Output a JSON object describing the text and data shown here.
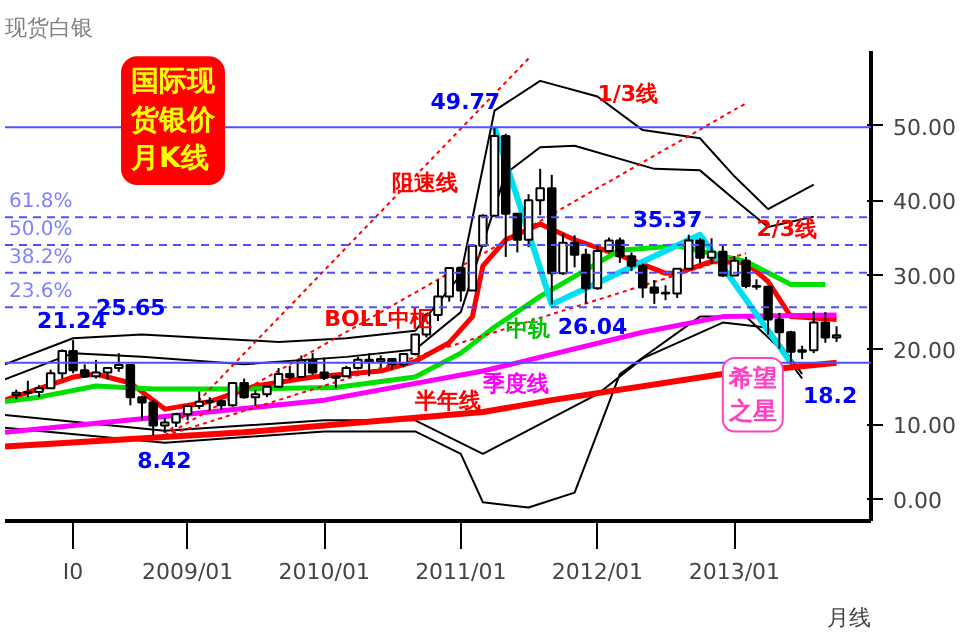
{
  "chart_data": {
    "type": "candlestick",
    "title": "现货白银",
    "subtitle": "国际现货银价月K线",
    "xlabel": "月线",
    "x": [
      "2007-10",
      "2007-11",
      "2007-12",
      "2008-01",
      "2008-02",
      "2008-03",
      "2008-04",
      "2008-05",
      "2008-06",
      "2008-07",
      "2008-08",
      "2008-09",
      "2008-10",
      "2008-11",
      "2008-12",
      "2009-01",
      "2009-02",
      "2009-03",
      "2009-04",
      "2009-05",
      "2009-06",
      "2009-07",
      "2009-08",
      "2009-09",
      "2009-10",
      "2009-11",
      "2009-12",
      "2010-01",
      "2010-02",
      "2010-03",
      "2010-04",
      "2010-05",
      "2010-06",
      "2010-07",
      "2010-08",
      "2010-09",
      "2010-10",
      "2010-11",
      "2010-12",
      "2011-01",
      "2011-02",
      "2011-03",
      "2011-04",
      "2011-05",
      "2011-06",
      "2011-07",
      "2011-08",
      "2011-09",
      "2011-10",
      "2011-11",
      "2011-12",
      "2012-01",
      "2012-02",
      "2012-03",
      "2012-04",
      "2012-05",
      "2012-06",
      "2012-07",
      "2012-08",
      "2012-09",
      "2012-10",
      "2012-11",
      "2012-12",
      "2013-01",
      "2013-02",
      "2013-03",
      "2013-04",
      "2013-05",
      "2013-06",
      "2013-07",
      "2013-08",
      "2013-09",
      "2013-10"
    ],
    "ohlc": [
      [
        13.9,
        14.6,
        13.3,
        14.2
      ],
      [
        14.2,
        15.8,
        13.6,
        14.3
      ],
      [
        14.3,
        15.2,
        13.6,
        14.8
      ],
      [
        14.8,
        17.3,
        14.8,
        16.8
      ],
      [
        16.8,
        20.0,
        16.1,
        19.8
      ],
      [
        19.8,
        21.24,
        16.8,
        17.2
      ],
      [
        17.2,
        18.0,
        16.2,
        16.4
      ],
      [
        16.4,
        18.6,
        16.1,
        16.9
      ],
      [
        16.9,
        17.6,
        16.0,
        17.5
      ],
      [
        17.5,
        19.5,
        17.0,
        17.9
      ],
      [
        17.9,
        18.0,
        12.5,
        13.6
      ],
      [
        13.6,
        13.8,
        10.5,
        12.9
      ],
      [
        12.9,
        13.2,
        8.42,
        9.8
      ],
      [
        9.8,
        10.8,
        8.8,
        10.2
      ],
      [
        10.2,
        11.5,
        9.6,
        11.3
      ],
      [
        11.3,
        12.5,
        10.5,
        12.4
      ],
      [
        12.4,
        14.4,
        12.0,
        13.0
      ],
      [
        13.0,
        13.6,
        11.8,
        13.1
      ],
      [
        13.1,
        13.3,
        11.9,
        12.5
      ],
      [
        12.5,
        15.6,
        12.3,
        15.5
      ],
      [
        15.5,
        16.1,
        13.4,
        13.6
      ],
      [
        13.6,
        14.6,
        12.5,
        14.0
      ],
      [
        14.0,
        15.0,
        13.6,
        15.0
      ],
      [
        15.0,
        17.5,
        14.9,
        16.7
      ],
      [
        16.7,
        17.8,
        15.9,
        16.3
      ],
      [
        16.3,
        19.2,
        16.2,
        18.5
      ],
      [
        18.5,
        19.5,
        16.6,
        16.9
      ],
      [
        16.9,
        18.9,
        15.9,
        16.2
      ],
      [
        16.2,
        16.6,
        14.8,
        16.4
      ],
      [
        16.4,
        17.8,
        16.3,
        17.5
      ],
      [
        17.5,
        19.0,
        17.3,
        18.6
      ],
      [
        18.6,
        19.5,
        16.4,
        18.4
      ],
      [
        18.4,
        19.2,
        17.6,
        18.7
      ],
      [
        18.7,
        18.8,
        17.3,
        18.0
      ],
      [
        18.0,
        19.5,
        17.6,
        19.4
      ],
      [
        19.4,
        22.1,
        19.2,
        22.0
      ],
      [
        22.0,
        24.9,
        21.6,
        24.6
      ],
      [
        24.6,
        29.3,
        23.8,
        27.1
      ],
      [
        27.1,
        31.0,
        26.4,
        30.9
      ],
      [
        30.9,
        31.1,
        26.4,
        27.9
      ],
      [
        27.9,
        34.1,
        27.9,
        33.9
      ],
      [
        33.9,
        38.1,
        33.9,
        37.9
      ],
      [
        37.9,
        49.77,
        37.8,
        48.6
      ],
      [
        48.6,
        48.9,
        32.4,
        38.2
      ],
      [
        38.2,
        38.3,
        33.0,
        34.7
      ],
      [
        34.7,
        40.8,
        33.7,
        40.0
      ],
      [
        40.0,
        44.2,
        38.0,
        41.6
      ],
      [
        41.6,
        43.4,
        26.04,
        30.2
      ],
      [
        30.2,
        35.6,
        30.0,
        34.3
      ],
      [
        34.3,
        35.3,
        31.0,
        32.7
      ],
      [
        32.7,
        33.5,
        26.2,
        28.2
      ],
      [
        28.2,
        34.0,
        28.0,
        33.2
      ],
      [
        33.2,
        35.0,
        33.0,
        34.6
      ],
      [
        34.6,
        35.0,
        31.6,
        32.5
      ],
      [
        32.5,
        33.0,
        30.5,
        31.2
      ],
      [
        31.2,
        31.5,
        26.9,
        28.3
      ],
      [
        28.3,
        29.3,
        26.1,
        27.6
      ],
      [
        27.6,
        28.6,
        26.6,
        27.5
      ],
      [
        27.5,
        30.8,
        26.9,
        30.8
      ],
      [
        30.8,
        35.37,
        30.8,
        34.6
      ],
      [
        34.6,
        34.9,
        31.6,
        32.3
      ],
      [
        32.3,
        34.9,
        31.4,
        33.1
      ],
      [
        33.1,
        34.0,
        29.7,
        29.9
      ],
      [
        29.9,
        32.5,
        29.9,
        31.9
      ],
      [
        31.9,
        32.4,
        28.2,
        28.5
      ],
      [
        28.5,
        29.4,
        28.0,
        28.4
      ],
      [
        28.4,
        28.5,
        22.0,
        24.0
      ],
      [
        24.0,
        24.9,
        20.1,
        22.3
      ],
      [
        22.3,
        22.5,
        18.2,
        19.7
      ],
      [
        19.7,
        20.5,
        18.7,
        19.9
      ],
      [
        19.9,
        25.1,
        19.5,
        23.6
      ],
      [
        23.6,
        25.0,
        20.9,
        21.6
      ],
      [
        21.6,
        23.1,
        21.0,
        21.9
      ]
    ],
    "xlim": [
      "2007-09",
      "2014-01"
    ],
    "xticks": [
      {
        "value": "2008-03",
        "label": "I0"
      },
      {
        "value": "2009-01",
        "label": "2009/01"
      },
      {
        "value": "2010-01",
        "label": "2010/01"
      },
      {
        "value": "2011-01",
        "label": "2011/01"
      },
      {
        "value": "2012-01",
        "label": "2012/01"
      },
      {
        "value": "2013-01",
        "label": "2013/01"
      }
    ],
    "ylim": [
      -3,
      60
    ],
    "yticks": [
      {
        "value": 0,
        "label": "0.00"
      },
      {
        "value": 10,
        "label": "10.00"
      },
      {
        "value": 20,
        "label": "20.00"
      },
      {
        "value": 30,
        "label": "30.00"
      },
      {
        "value": 40,
        "label": "40.00"
      },
      {
        "value": 50,
        "label": "50.00"
      }
    ],
    "ref_lines": [
      {
        "axis": "y",
        "value": 49.77,
        "color": "#5050ff",
        "line_style": "solid"
      },
      {
        "axis": "y",
        "value": 18.2,
        "color": "#5050ff",
        "line_style": "solid"
      },
      {
        "axis": "y",
        "value": 37.71,
        "color": "#5050ff",
        "line_style": "dashed"
      },
      {
        "axis": "y",
        "value": 33.99,
        "color": "#5050ff",
        "line_style": "dashed"
      },
      {
        "axis": "y",
        "value": 30.26,
        "color": "#5050ff",
        "line_style": "dashed"
      },
      {
        "axis": "y",
        "value": 25.65,
        "color": "#5050ff",
        "line_style": "dashed"
      }
    ],
    "series": [
      {
        "type": "line",
        "color": "#000000",
        "x": [
          "2007-09",
          "2008-03",
          "2008-09",
          "2009-03",
          "2009-09",
          "2010-03",
          "2010-09",
          "2011-01",
          "2011-04",
          "2011-08",
          "2012-01",
          "2012-05",
          "2012-10",
          "2013-01",
          "2013-04",
          "2013-08"
        ],
        "values": [
          18,
          21.5,
          22,
          21.5,
          21,
          21.5,
          22.5,
          30,
          52,
          56,
          53.9,
          49.4,
          48.3,
          43.2,
          38.8,
          42.1
        ]
      },
      {
        "type": "line",
        "color": "#000000",
        "x": [
          "2007-09",
          "2008-03",
          "2008-09",
          "2009-06",
          "2010-03",
          "2010-09",
          "2011-01",
          "2011-05",
          "2011-08",
          "2011-11",
          "2012-06",
          "2012-10",
          "2013-01",
          "2013-04",
          "2013-08"
        ],
        "values": [
          16,
          19.5,
          19,
          18,
          19,
          20,
          25,
          43.6,
          47.1,
          47.3,
          44.2,
          44,
          40.1,
          36.4,
          37.8
        ]
      },
      {
        "type": "line",
        "color": "#000000",
        "x": [
          "2007-09",
          "2008-11",
          "2010-01",
          "2010-09",
          "2011-03",
          "2012-01",
          "2012-05",
          "2012-12",
          "2013-04",
          "2013-07"
        ],
        "values": [
          11.2,
          9.1,
          10.5,
          10.5,
          6,
          14,
          18.8,
          23.6,
          22.9,
          16.7
        ]
      },
      {
        "type": "line",
        "color": "#000000",
        "x": [
          "2007-09",
          "2008-11",
          "2010-01",
          "2010-09",
          "2011-01",
          "2011-03",
          "2011-07",
          "2011-11",
          "2012-03",
          "2012-10",
          "2013-02",
          "2013-05",
          "2013-07"
        ],
        "values": [
          9.5,
          7.5,
          9,
          9,
          6,
          -0.5,
          -1.2,
          0.8,
          16.7,
          24.4,
          24.4,
          20.2,
          16.1
        ]
      },
      {
        "type": "line",
        "color": "#ff0000",
        "x": [
          "2007-09",
          "2008-03",
          "2008-05",
          "2008-08",
          "2008-11",
          "2009-03",
          "2009-07",
          "2009-12",
          "2010-06",
          "2010-09",
          "2010-12",
          "2011-02",
          "2011-03",
          "2011-05",
          "2011-08",
          "2011-11",
          "2012-03",
          "2012-07",
          "2012-08",
          "2012-11",
          "2013-02",
          "2013-04",
          "2013-06",
          "2013-10"
        ],
        "values": [
          13.2,
          16.3,
          16.7,
          15.5,
          12,
          13,
          15.1,
          16.3,
          17.1,
          18.4,
          20.9,
          24.4,
          31.2,
          34.7,
          36.8,
          34.7,
          32.6,
          30.2,
          30.2,
          31.8,
          31.6,
          29.1,
          24.4,
          24
        ]
      },
      {
        "type": "line",
        "color": "#00e000",
        "x": [
          "2007-09",
          "2007-12",
          "2008-05",
          "2008-10",
          "2009-06",
          "2010-02",
          "2010-09",
          "2011-01",
          "2011-04",
          "2011-08",
          "2012-03",
          "2012-08",
          "2013-02",
          "2013-06",
          "2013-09"
        ],
        "values": [
          13,
          13.6,
          15.1,
          14.7,
          14.7,
          14.9,
          16.3,
          19.5,
          23,
          27.1,
          33.3,
          33.9,
          31.8,
          28.7,
          28.7
        ]
      },
      {
        "type": "line",
        "color": "#ff00ff",
        "x": [
          "2007-09",
          "2008-11",
          "2010-01",
          "2011-03",
          "2012-05",
          "2012-12",
          "2013-10"
        ],
        "values": [
          8.9,
          11,
          13.2,
          17.1,
          22.3,
          24.4,
          24.6
        ]
      },
      {
        "type": "line",
        "color": "#ff0000",
        "x": [
          "2007-09",
          "2009-06",
          "2011-03",
          "2011-09",
          "2012-12",
          "2013-10"
        ],
        "values": [
          7,
          8.9,
          11.6,
          13.2,
          16.7,
          18.2
        ]
      },
      {
        "type": "line",
        "color": "#00e0f0",
        "x": [
          "2011-04",
          "2011-09",
          "2012-10",
          "2013-06"
        ],
        "values": [
          49.77,
          26.04,
          35.37,
          18.2
        ]
      },
      {
        "type": "line",
        "color": "#ff0000",
        "line_style": "dotted",
        "x": [
          "2008-11",
          "2011-07"
        ],
        "values": [
          8.42,
          59
        ]
      },
      {
        "type": "line",
        "color": "#ff0000",
        "line_style": "dotted",
        "x": [
          "2008-11",
          "2013-02"
        ],
        "values": [
          8.42,
          53
        ]
      },
      {
        "type": "line",
        "color": "#ff0000",
        "line_style": "dotted",
        "x": [
          "2008-11",
          "2013-02"
        ],
        "values": [
          8.42,
          32.9
        ]
      }
    ],
    "annotations": [
      {
        "text": "49.77",
        "x": "2011-04",
        "y": 49.77
      },
      {
        "text": "35.37",
        "x": "2012-09",
        "y": 35.37
      },
      {
        "text": "26.04",
        "x": "2011-09",
        "y": 26.04
      },
      {
        "text": "18.2",
        "x": "2013-06",
        "y": 18.2
      },
      {
        "text": "21.24",
        "x": "2008-03",
        "y": 21.24
      },
      {
        "text": "8.42",
        "x": "2008-10",
        "y": 8.42
      },
      {
        "text": "25.65",
        "x": "2008-05",
        "y": 25.65
      },
      "阻速线",
      "1/3线",
      "2/3线",
      "BOLL中枢",
      "中轨",
      "季度线",
      "半年线",
      "希望之星",
      {
        "text": "61.8%",
        "x": "2007-09",
        "y": 37.71
      },
      {
        "text": "50.0%",
        "x": "2007-09",
        "y": 33.99
      },
      {
        "text": "38.2%",
        "x": "2007-09",
        "y": 30.26
      },
      {
        "text": "23.6%",
        "x": "2007-09",
        "y": 25.65
      }
    ],
    "grid": false
  }
}
